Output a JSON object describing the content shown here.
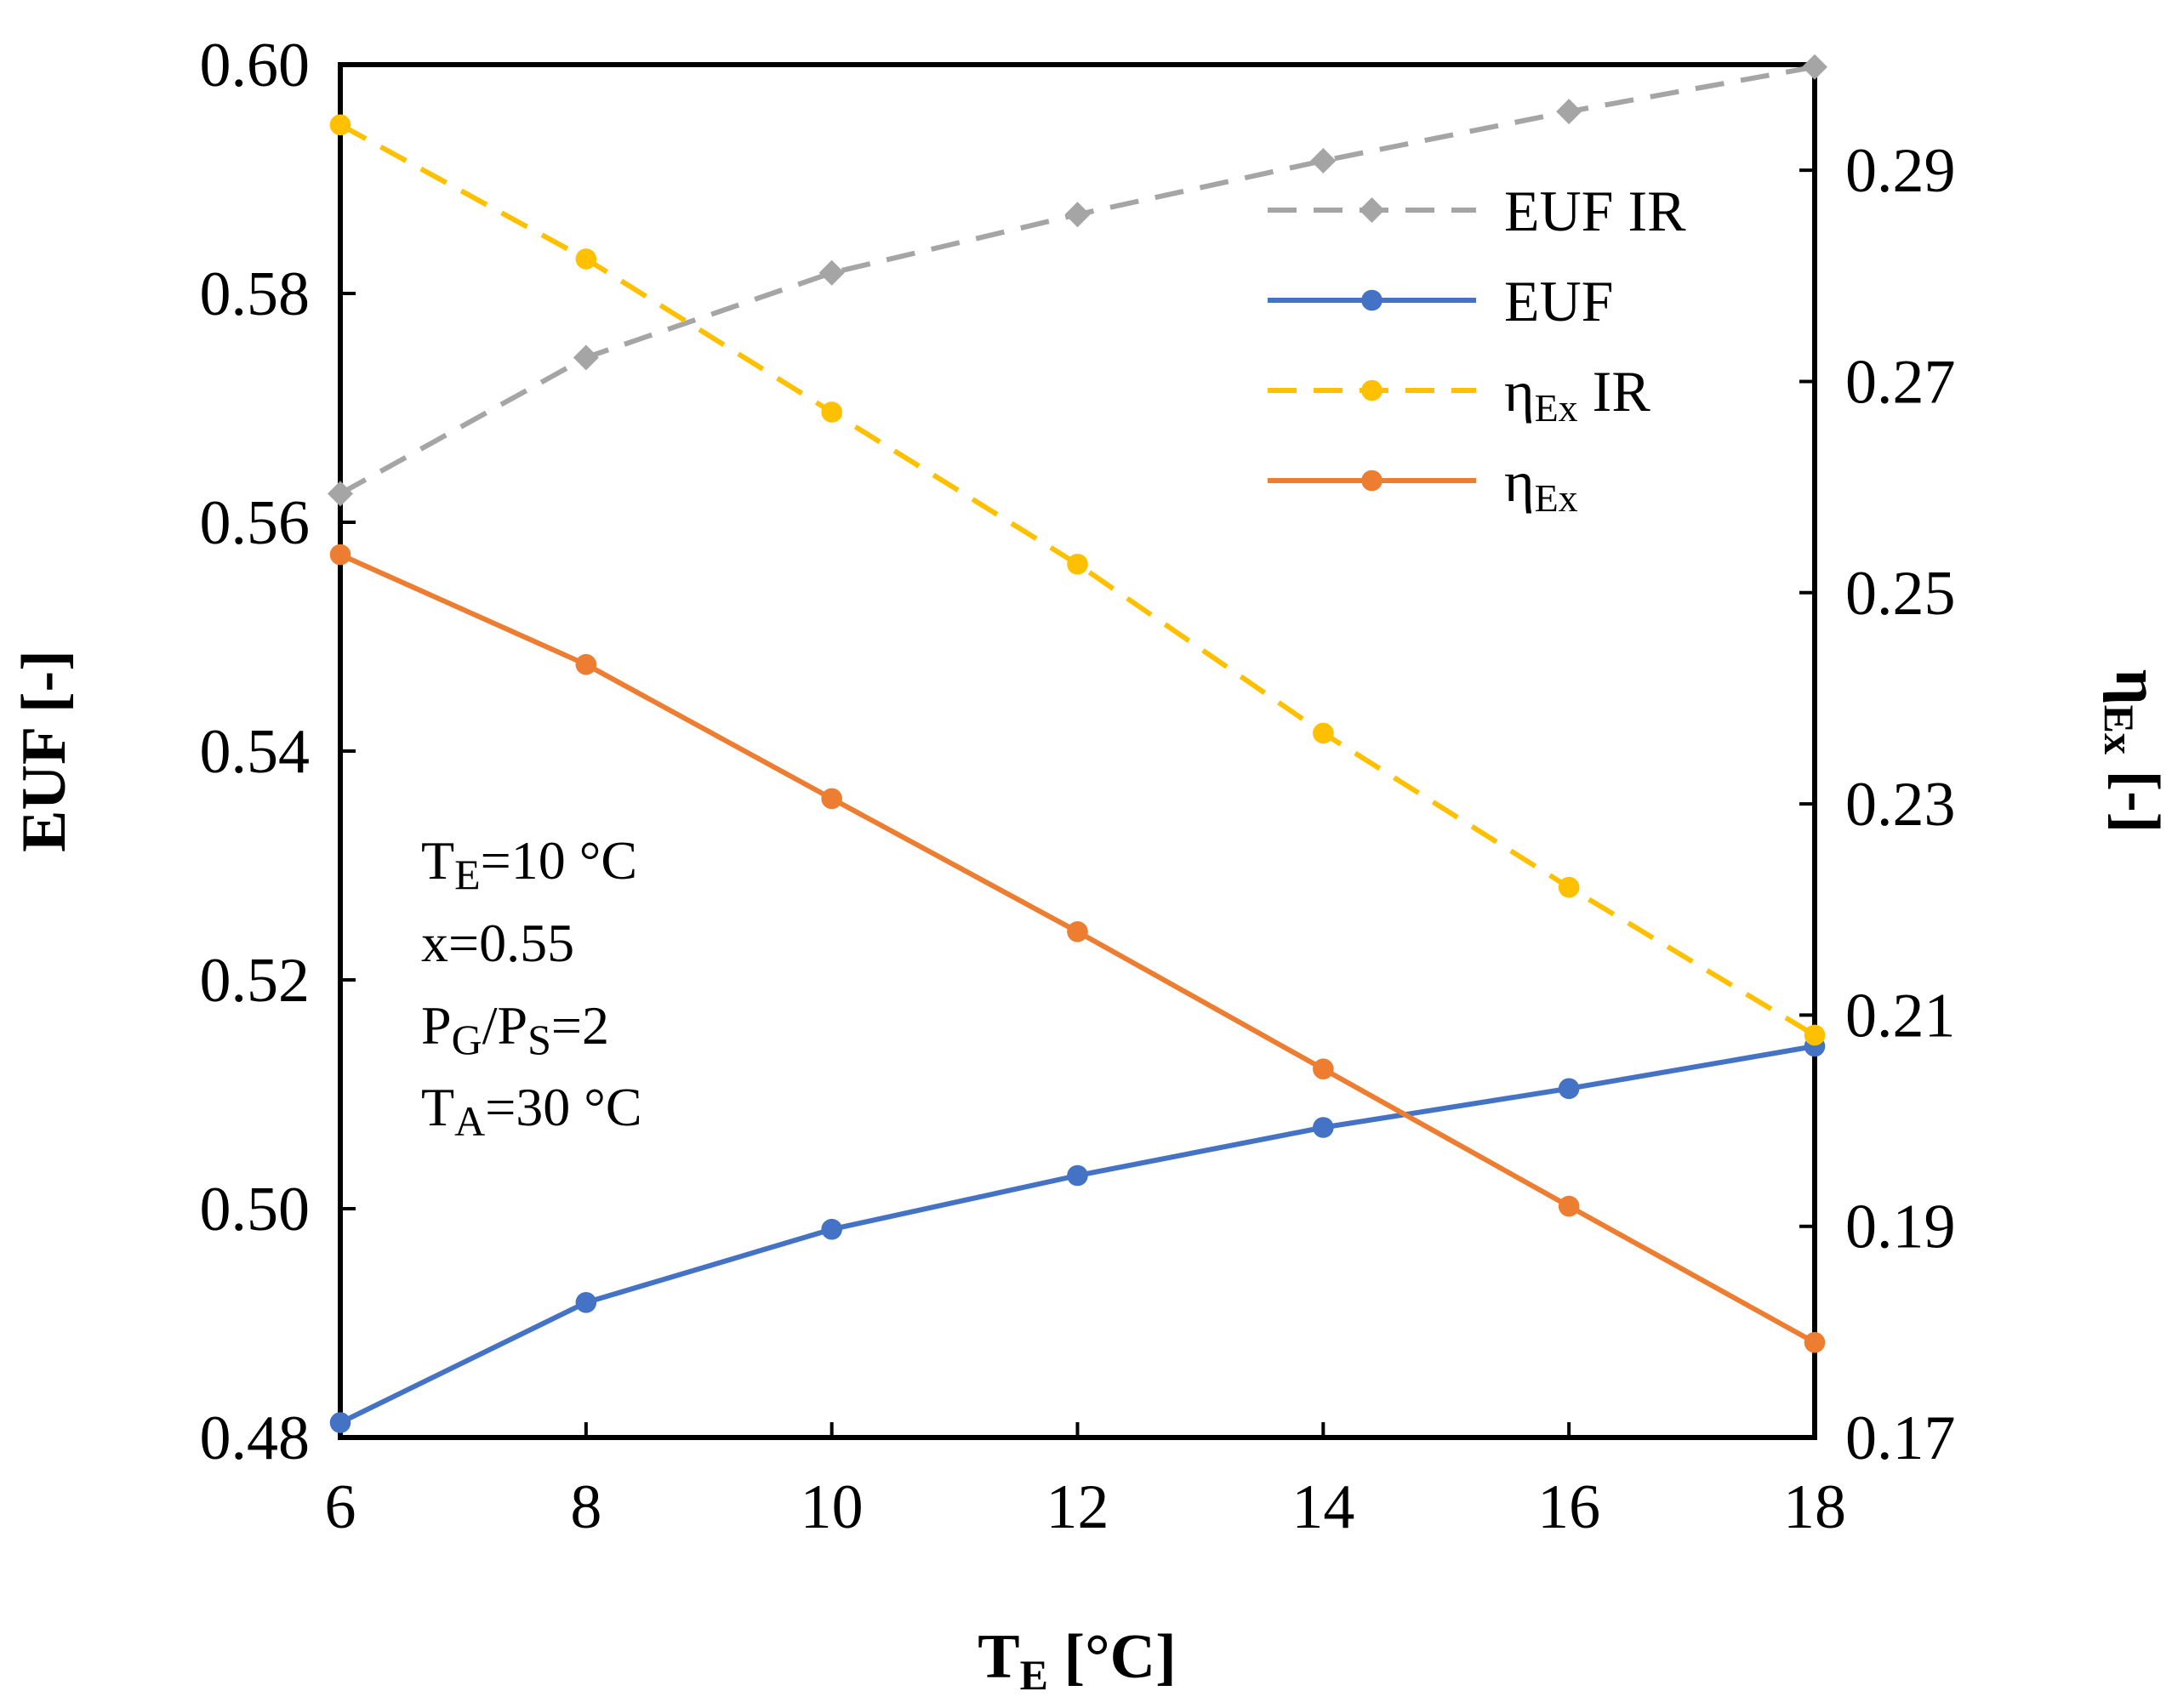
{
  "chart_data": {
    "type": "line",
    "x": [
      6,
      8,
      10,
      12,
      14,
      16,
      18
    ],
    "xlabel": {
      "main": "T",
      "sub": "E",
      "unit": " [°C]"
    },
    "ylabel_left": "EUF [-]",
    "ylabel_right": {
      "main": "η",
      "sub": "Ex",
      "unit": " [-]"
    },
    "xlim": [
      6,
      18
    ],
    "ylim_left": [
      0.48,
      0.6
    ],
    "ylim_right": [
      0.17,
      0.3
    ],
    "xticks": [
      "6",
      "8",
      "10",
      "12",
      "14",
      "16",
      "18"
    ],
    "yticks_left": [
      "0.48",
      "0.50",
      "0.52",
      "0.54",
      "0.56",
      "0.58",
      "0.60"
    ],
    "yticks_right": [
      "0.17",
      "0.19",
      "0.21",
      "0.23",
      "0.25",
      "0.27",
      "0.29"
    ],
    "grid": false,
    "legend_position": "top-right",
    "series": [
      {
        "key": "euf_ir",
        "name": "EUF IR",
        "axis": "left",
        "color": "#A5A5A5",
        "style": "dashed",
        "marker": "diamond",
        "values": [
          0.5625,
          0.5744,
          0.5818,
          0.5869,
          0.5916,
          0.5959,
          0.5998
        ]
      },
      {
        "key": "euf",
        "name": "EUF",
        "axis": "left",
        "color": "#4472C4",
        "style": "solid",
        "marker": "circle",
        "values": [
          0.4813,
          0.4918,
          0.4982,
          0.5029,
          0.5071,
          0.5105,
          0.5142
        ]
      },
      {
        "key": "eta_ir",
        "name": "ηEx IR",
        "axis": "right",
        "color": "#FFC000",
        "style": "dashed",
        "marker": "circle",
        "values": [
          0.2943,
          0.2816,
          0.2671,
          0.2527,
          0.2367,
          0.2221,
          0.2081
        ]
      },
      {
        "key": "eta",
        "name": "ηEx",
        "axis": "right",
        "color": "#ED7D31",
        "style": "solid",
        "marker": "circle",
        "values": [
          0.2536,
          0.2432,
          0.2305,
          0.2179,
          0.2049,
          0.1919,
          0.179
        ]
      }
    ],
    "legend": [
      {
        "key": "euf_ir",
        "main": "EUF IR",
        "sub": "",
        "rest": ""
      },
      {
        "key": "euf",
        "main": "EUF",
        "sub": "",
        "rest": ""
      },
      {
        "key": "eta_ir",
        "main": "η",
        "sub": "Ex",
        "rest": " IR"
      },
      {
        "key": "eta",
        "main": "η",
        "sub": "Ex",
        "rest": ""
      }
    ],
    "annotation_lines": [
      {
        "pre": "T",
        "sub": "E",
        "post": "=10 °C"
      },
      {
        "pre": "x=0.55",
        "sub": "",
        "post": ""
      },
      {
        "pre": "P",
        "sub": "G",
        "post": "/P",
        "sub2": "S",
        "post2": "=2"
      },
      {
        "pre": "T",
        "sub": "A",
        "post": "=30 °C"
      }
    ]
  }
}
